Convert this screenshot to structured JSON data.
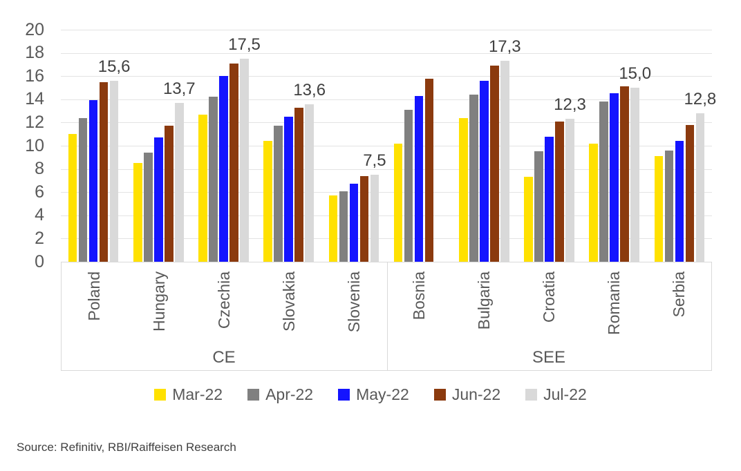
{
  "chart_data": {
    "type": "bar",
    "title": "",
    "xlabel": "",
    "ylabel": "",
    "ylim": [
      0,
      20
    ],
    "yticks": [
      0,
      2,
      4,
      6,
      8,
      10,
      12,
      14,
      16,
      18,
      20
    ],
    "grid": true,
    "legend_position": "bottom",
    "series": [
      {
        "name": "Mar-22",
        "color": "#FFE100"
      },
      {
        "name": "Apr-22",
        "color": "#808080"
      },
      {
        "name": "May-22",
        "color": "#1414FF"
      },
      {
        "name": "Jun-22",
        "color": "#8B3A0E"
      },
      {
        "name": "Jul-22",
        "color": "#D9D9D9"
      }
    ],
    "groups": [
      {
        "label": "CE",
        "categories": [
          "Poland",
          "Hungary",
          "Czechia",
          "Slovakia",
          "Slovenia"
        ]
      },
      {
        "label": "SEE",
        "categories": [
          "Bosnia",
          "Bulgaria",
          "Croatia",
          "Romania",
          "Serbia"
        ]
      }
    ],
    "data": [
      {
        "category": "Poland",
        "group": "CE",
        "values": [
          11.0,
          12.4,
          13.9,
          15.5,
          15.6
        ],
        "data_label": "15,6"
      },
      {
        "category": "Hungary",
        "group": "CE",
        "values": [
          8.5,
          9.4,
          10.7,
          11.7,
          13.7
        ],
        "data_label": "13,7"
      },
      {
        "category": "Czechia",
        "group": "CE",
        "values": [
          12.7,
          14.2,
          16.0,
          17.1,
          17.5
        ],
        "data_label": "17,5"
      },
      {
        "category": "Slovakia",
        "group": "CE",
        "values": [
          10.4,
          11.7,
          12.5,
          13.3,
          13.6
        ],
        "data_label": "13,6"
      },
      {
        "category": "Slovenia",
        "group": "CE",
        "values": [
          5.7,
          6.1,
          6.7,
          7.4,
          7.5
        ],
        "data_label": "7,5"
      },
      {
        "category": "Bosnia",
        "group": "SEE",
        "values": [
          10.2,
          13.1,
          14.3,
          15.8,
          null
        ],
        "data_label": null
      },
      {
        "category": "Bulgaria",
        "group": "SEE",
        "values": [
          12.4,
          14.4,
          15.6,
          16.9,
          17.3
        ],
        "data_label": "17,3"
      },
      {
        "category": "Croatia",
        "group": "SEE",
        "values": [
          7.3,
          9.5,
          10.8,
          12.1,
          12.3
        ],
        "data_label": "12,3"
      },
      {
        "category": "Romania",
        "group": "SEE",
        "values": [
          10.2,
          13.8,
          14.5,
          15.1,
          15.0
        ],
        "data_label": "15,0"
      },
      {
        "category": "Serbia",
        "group": "SEE",
        "values": [
          9.1,
          9.6,
          10.4,
          11.8,
          12.8
        ],
        "data_label": "12,8"
      }
    ]
  },
  "colors": {
    "axis_text": "#595959",
    "data_label_text": "#404040",
    "gridline": "#E3E3E3",
    "box_border": "#D9D9D9"
  },
  "footer": {
    "source": "Source: Refinitiv, RBI/Raiffeisen Research"
  }
}
